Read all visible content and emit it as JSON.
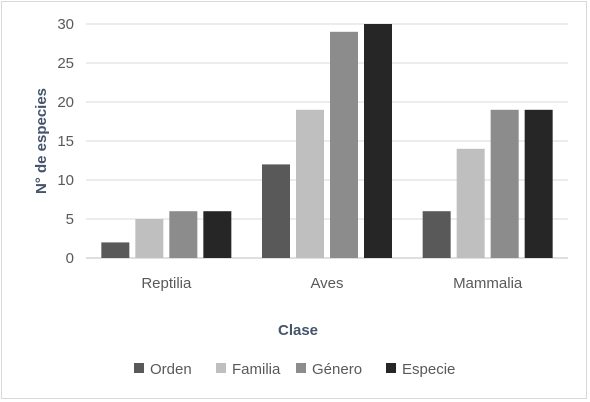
{
  "chart_data": {
    "type": "bar",
    "title": "",
    "xlabel": "Clase",
    "ylabel": "N° de especies",
    "categories": [
      "Reptilia",
      "Aves",
      "Mammalia"
    ],
    "ylim": [
      0,
      30
    ],
    "yticks": [
      0,
      5,
      10,
      15,
      20,
      25,
      30
    ],
    "grid": true,
    "legend_position": "bottom",
    "series": [
      {
        "name": "Orden",
        "color": "#595959",
        "values": [
          2,
          12,
          6
        ]
      },
      {
        "name": "Familia",
        "color": "#bfbfbf",
        "values": [
          5,
          19,
          14
        ]
      },
      {
        "name": "Género",
        "color": "#8c8c8c",
        "values": [
          6,
          29,
          19
        ]
      },
      {
        "name": "Especie",
        "color": "#262626",
        "values": [
          6,
          30,
          19
        ]
      }
    ]
  }
}
